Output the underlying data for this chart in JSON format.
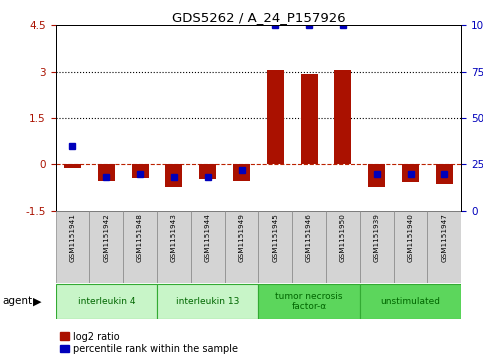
{
  "title": "GDS5262 / A_24_P157926",
  "samples": [
    "GSM1151941",
    "GSM1151942",
    "GSM1151948",
    "GSM1151943",
    "GSM1151944",
    "GSM1151949",
    "GSM1151945",
    "GSM1151946",
    "GSM1151950",
    "GSM1151939",
    "GSM1151940",
    "GSM1151947"
  ],
  "log2_ratio": [
    -0.12,
    -0.55,
    -0.45,
    -0.75,
    -0.48,
    -0.55,
    3.05,
    2.93,
    3.07,
    -0.75,
    -0.58,
    -0.65
  ],
  "percentile": [
    35,
    18,
    20,
    18,
    18,
    22,
    100,
    100,
    100,
    20,
    20,
    20
  ],
  "groups": [
    {
      "label": "interleukin 4",
      "start": 0,
      "end": 2,
      "color": "#c8f5c8"
    },
    {
      "label": "interleukin 13",
      "start": 3,
      "end": 5,
      "color": "#c8f5c8"
    },
    {
      "label": "tumor necrosis\nfactor-α",
      "start": 6,
      "end": 8,
      "color": "#5cd65c"
    },
    {
      "label": "unstimulated",
      "start": 9,
      "end": 11,
      "color": "#5cd65c"
    }
  ],
  "ylim": [
    -1.5,
    4.5
  ],
  "yticks_left": [
    -1.5,
    0,
    1.5,
    3,
    4.5
  ],
  "yticks_right": [
    0,
    25,
    50,
    75,
    100
  ],
  "bar_color": "#aa1100",
  "dot_color": "#0000bb",
  "dashed_line_color": "#bb2200",
  "agent_label": "agent",
  "legend1": "log2 ratio",
  "legend2": "percentile rank within the sample"
}
